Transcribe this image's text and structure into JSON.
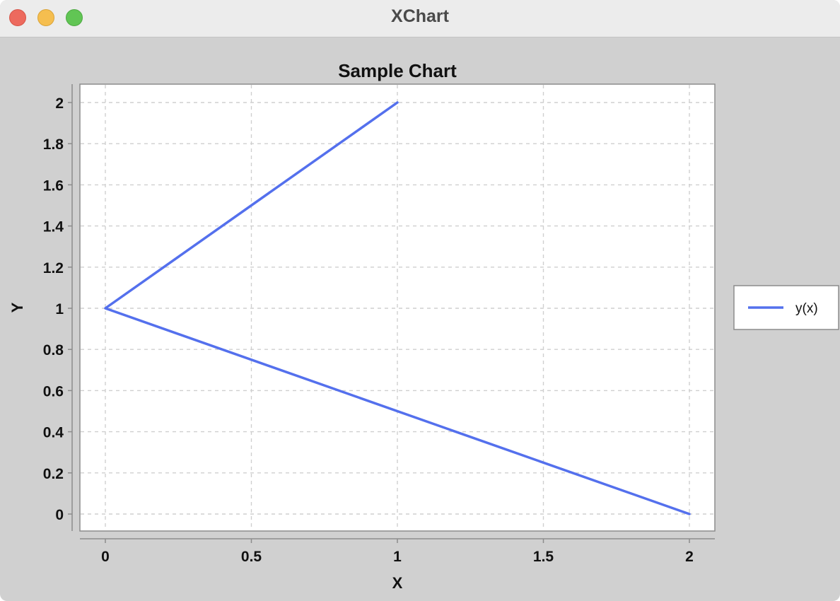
{
  "window": {
    "title": "XChart"
  },
  "chart_data": {
    "type": "line",
    "title": "Sample Chart",
    "xlabel": "X",
    "ylabel": "Y",
    "xlim": [
      0,
      2
    ],
    "ylim": [
      0,
      2
    ],
    "x_ticks": [
      "0",
      "0.5",
      "1",
      "1.5",
      "2"
    ],
    "y_ticks": [
      "0",
      "0.2",
      "0.4",
      "0.6",
      "0.8",
      "1",
      "1.2",
      "1.4",
      "1.6",
      "1.8",
      "2"
    ],
    "grid": true,
    "legend_position": "outside-right",
    "series": [
      {
        "name": "y(x)",
        "color": "#5470ed",
        "x": [
          1,
          0,
          2
        ],
        "y": [
          2,
          1,
          0
        ]
      }
    ]
  }
}
